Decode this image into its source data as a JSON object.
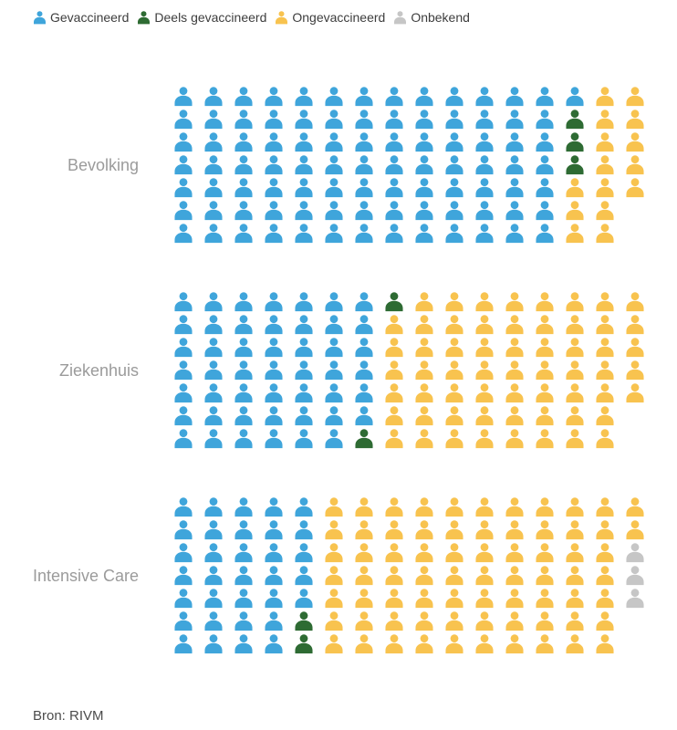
{
  "legend": {
    "items": [
      {
        "key": "gevaccineerd",
        "label": "Gevaccineerd",
        "color": "#3fa5db"
      },
      {
        "key": "deels-gevaccineerd",
        "label": "Deels gevaccineerd",
        "color": "#2e6b33"
      },
      {
        "key": "ongevaccineerd",
        "label": "Ongevaccineerd",
        "color": "#f8c34f"
      },
      {
        "key": "onbekend",
        "label": "Onbekend",
        "color": "#c6c6c6"
      }
    ]
  },
  "chart_data": {
    "type": "pictogram",
    "description": "Vaccination status pictogram chart; each group is a grid of person icons filled column-major, 7 rows per column, in category order.",
    "rows_per_column": 7,
    "icons_per_group": 110,
    "categories": [
      "Gevaccineerd",
      "Deels gevaccineerd",
      "Ongevaccineerd",
      "Onbekend"
    ],
    "keys": [
      "gevaccineerd",
      "deels-gevaccineerd",
      "ongevaccineerd",
      "onbekend"
    ],
    "colors": [
      "#3fa5db",
      "#2e6b33",
      "#f8c34f",
      "#c6c6c6"
    ],
    "groups": [
      {
        "label": "Bevolking",
        "counts": [
          92,
          3,
          15,
          0
        ]
      },
      {
        "label": "Ziekenhuis",
        "counts": [
          48,
          2,
          60,
          0
        ]
      },
      {
        "label": "Intensive Care",
        "counts": [
          33,
          2,
          72,
          3
        ]
      }
    ],
    "legend_position": "top",
    "grid": "off"
  },
  "source": "Bron: RIVM"
}
